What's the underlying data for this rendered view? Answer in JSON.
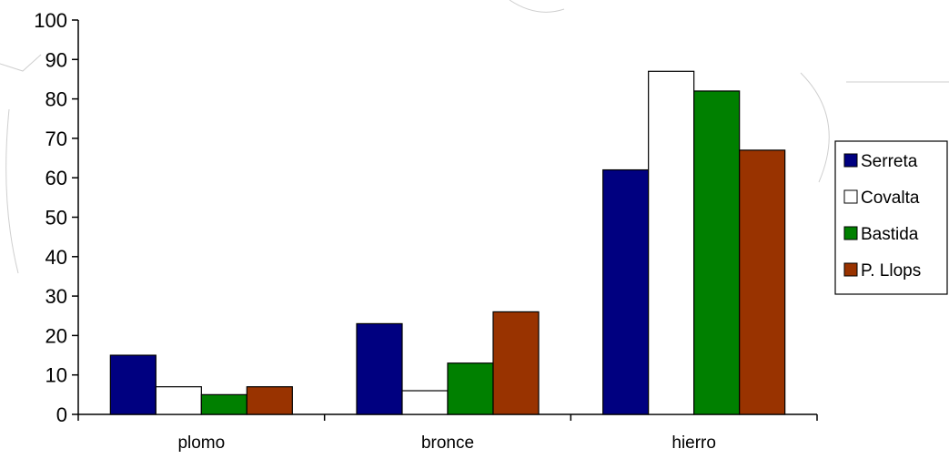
{
  "chart_data": {
    "type": "bar",
    "title": "",
    "xlabel": "",
    "ylabel": "",
    "categories": [
      "plomo",
      "bronce",
      "hierro"
    ],
    "ylim": [
      0,
      100
    ],
    "yticks": [
      0,
      10,
      20,
      30,
      40,
      50,
      60,
      70,
      80,
      90,
      100
    ],
    "grid": false,
    "legend": "right",
    "series": [
      {
        "name": "Serreta",
        "color": "#000080",
        "values": [
          15,
          23,
          62
        ]
      },
      {
        "name": "Covalta",
        "color": "#ffffff",
        "values": [
          7,
          6,
          87
        ]
      },
      {
        "name": "Bastida",
        "color": "#008000",
        "values": [
          5,
          13,
          82
        ]
      },
      {
        "name": "P. Llops",
        "color": "#993300",
        "values": [
          7,
          26,
          67
        ]
      }
    ]
  }
}
